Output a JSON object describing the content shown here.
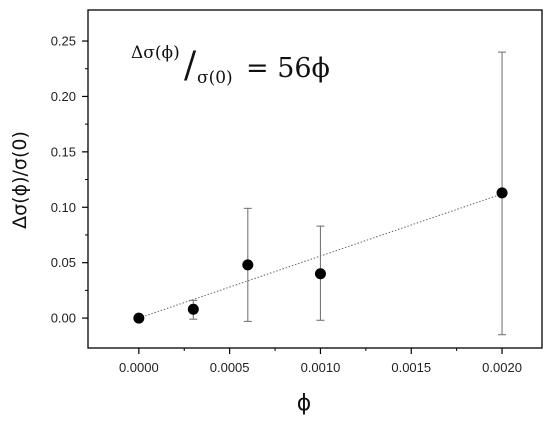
{
  "chart_data": {
    "type": "scatter",
    "title": "",
    "xlabel": "ϕ",
    "ylabel": "Δσ(ϕ)/σ(0)",
    "xlim": [
      -0.00028,
      0.00222
    ],
    "ylim": [
      -0.027,
      0.278
    ],
    "x_ticks": [
      0.0,
      0.0005,
      0.001,
      0.0015,
      0.002
    ],
    "x_tick_labels": [
      "0.0000",
      "0.0005",
      "0.0010",
      "0.0015",
      "0.0020"
    ],
    "y_ticks": [
      0.0,
      0.05,
      0.1,
      0.15,
      0.2,
      0.25
    ],
    "y_tick_labels": [
      "0.00",
      "0.05",
      "0.10",
      "0.15",
      "0.20",
      "0.25"
    ],
    "grid": false,
    "points": [
      {
        "x": 0.0,
        "y": 0.0,
        "err_low": 0.0,
        "err_high": 0.0
      },
      {
        "x": 0.0003,
        "y": 0.008,
        "err_low": -0.001,
        "err_high": 0.016
      },
      {
        "x": 0.0006,
        "y": 0.048,
        "err_low": -0.003,
        "err_high": 0.099
      },
      {
        "x": 0.001,
        "y": 0.04,
        "err_low": -0.002,
        "err_high": 0.083
      },
      {
        "x": 0.002,
        "y": 0.113,
        "err_low": -0.015,
        "err_high": 0.24
      }
    ],
    "fit": {
      "slope": 56,
      "x_range": [
        0.0,
        0.002
      ]
    },
    "annotation": {
      "numerator": "Δσ(ϕ)",
      "slash": "/",
      "denominator": "σ(0)",
      "rhs": "= 56ϕ"
    },
    "colors": {
      "marker": "#000000",
      "errorbar": "#777777",
      "fit": "#666666",
      "axis": "#000000"
    }
  }
}
